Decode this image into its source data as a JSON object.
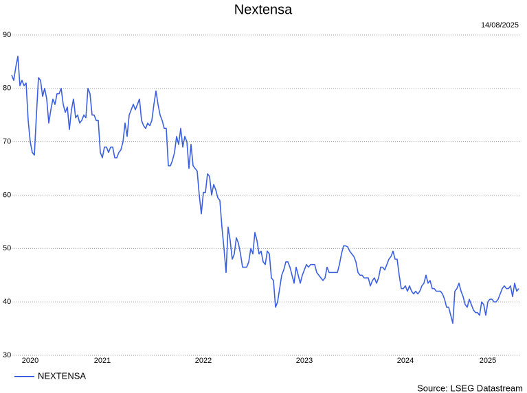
{
  "chart_data": {
    "type": "line",
    "title": "Nextensa",
    "date": "14/08/2025",
    "source": "Source: LSEG Datastream",
    "categories": [
      null,
      null,
      null,
      null,
      null,
      null,
      null,
      null,
      null,
      "2020",
      null,
      null,
      null,
      null,
      null,
      null,
      null,
      null,
      null,
      null,
      null,
      null,
      null,
      null,
      null,
      null,
      null,
      null,
      null,
      null,
      null,
      null,
      null,
      null,
      null,
      null,
      null,
      null,
      null,
      null,
      null,
      null,
      null,
      null,
      "2021",
      null,
      null,
      null,
      null,
      null,
      null,
      null,
      null,
      null,
      null,
      null,
      null,
      null,
      null,
      null,
      null,
      null,
      null,
      null,
      null,
      null,
      null,
      null,
      null,
      null,
      null,
      null,
      null,
      null,
      null,
      null,
      null,
      null,
      null,
      null,
      null,
      null,
      null,
      null,
      null,
      null,
      null,
      null,
      null,
      null,
      null,
      null,
      null,
      "2022",
      null,
      null,
      null,
      null,
      null,
      null,
      null,
      null,
      null,
      null,
      null,
      null,
      null,
      null,
      null,
      null,
      null,
      null,
      null,
      null,
      null,
      null,
      null,
      null,
      null,
      null,
      null,
      null,
      null,
      null,
      null,
      null,
      null,
      null,
      null,
      null,
      null,
      null,
      null,
      null,
      null,
      null,
      null,
      null,
      null,
      null,
      null,
      null,
      "2023",
      null,
      null,
      null,
      null,
      null,
      null,
      null,
      null,
      null,
      null,
      null,
      null,
      null,
      null,
      null,
      null,
      null,
      null,
      null,
      null,
      null,
      null,
      null,
      null,
      null,
      null,
      null,
      null,
      null,
      null,
      null,
      null,
      null,
      null,
      null,
      null,
      null,
      null,
      null,
      null,
      null,
      null,
      null,
      null,
      null,
      null,
      null,
      null,
      "2024",
      null,
      null,
      null,
      null,
      null,
      null,
      null,
      null,
      null,
      null,
      null,
      null,
      null,
      null,
      null,
      null,
      null,
      null,
      null,
      null,
      null,
      null,
      null,
      null,
      null,
      null,
      null,
      null,
      null,
      null,
      null,
      null,
      null,
      null,
      null,
      null,
      null,
      null,
      null,
      "2025",
      null,
      null,
      null,
      null,
      null,
      null,
      null,
      null,
      null,
      null,
      null,
      null,
      null,
      null,
      null
    ],
    "series": [
      {
        "name": "NEXTENSA",
        "color": "#3a5fe0",
        "values": [
          82.5,
          81.5,
          84,
          86,
          80.5,
          81.5,
          80.5,
          81,
          74,
          70,
          68,
          67.5,
          75,
          82,
          81.5,
          78.5,
          80,
          78,
          73.5,
          76,
          78,
          77,
          79,
          79,
          80,
          77,
          75.5,
          76.5,
          72.3,
          76,
          78,
          74.5,
          75,
          73.5,
          74,
          75,
          74.5,
          80,
          79,
          75,
          75,
          74,
          74,
          68,
          67,
          69,
          69,
          68,
          69,
          69,
          67,
          67,
          68,
          68.5,
          70,
          73.5,
          71,
          75,
          76,
          77,
          76,
          77,
          78,
          74,
          73,
          72.5,
          73.5,
          73,
          74,
          77,
          79.5,
          77,
          75,
          74,
          72.5,
          72.5,
          65.5,
          65.5,
          66.5,
          68,
          71,
          69.5,
          72.5,
          69,
          71,
          70,
          65,
          69.5,
          65.5,
          65,
          64.5,
          60,
          56.5,
          60.5,
          60.5,
          64,
          63.5,
          60,
          62,
          61,
          59.5,
          59,
          54,
          50,
          45.5,
          54,
          51.5,
          48,
          49,
          52,
          51,
          49,
          46.5,
          46.5,
          46.5,
          47.5,
          50,
          49,
          53,
          51.5,
          49,
          49.5,
          47.5,
          47,
          49.5,
          49,
          44.5,
          44,
          39,
          40,
          42.5,
          45,
          46,
          47.5,
          47.5,
          46.5,
          45,
          43.5,
          46.5,
          45,
          43.5,
          45,
          46,
          47,
          46.5,
          47,
          47,
          47,
          45.5,
          45,
          44.5,
          44,
          44.5,
          46.5,
          45.5,
          45.5,
          45.5,
          45.5,
          45.5,
          47,
          49,
          50.5,
          50.5,
          50.3,
          49.5,
          49,
          48.5,
          47.5,
          45.5,
          45,
          45,
          44.5,
          44.5,
          44.5,
          43,
          44,
          44.5,
          43.5,
          44.5,
          46.5,
          46.5,
          46,
          47,
          48,
          48.5,
          49.5,
          48,
          48,
          45,
          42.5,
          42.5,
          43,
          42,
          43,
          42,
          41.5,
          42,
          41.5,
          42,
          43,
          43.5,
          45,
          43.5,
          44,
          42.5,
          42.5,
          42,
          42,
          42,
          41.5,
          40.5,
          39,
          39,
          37.5,
          36,
          42,
          42.5,
          43.5,
          42,
          41,
          39.5,
          39,
          40.5,
          39.5,
          38.5,
          38,
          38,
          37.5,
          40,
          39.5,
          37.5,
          40,
          40.5,
          40.5,
          40,
          40,
          40.5,
          41.5,
          42.5,
          43,
          42.5,
          42.5,
          43,
          41,
          43.5,
          42,
          42.5
        ]
      }
    ],
    "ylim": [
      30,
      90
    ],
    "yticks": [
      30,
      40,
      50,
      60,
      70,
      80,
      90
    ],
    "grid": true
  }
}
